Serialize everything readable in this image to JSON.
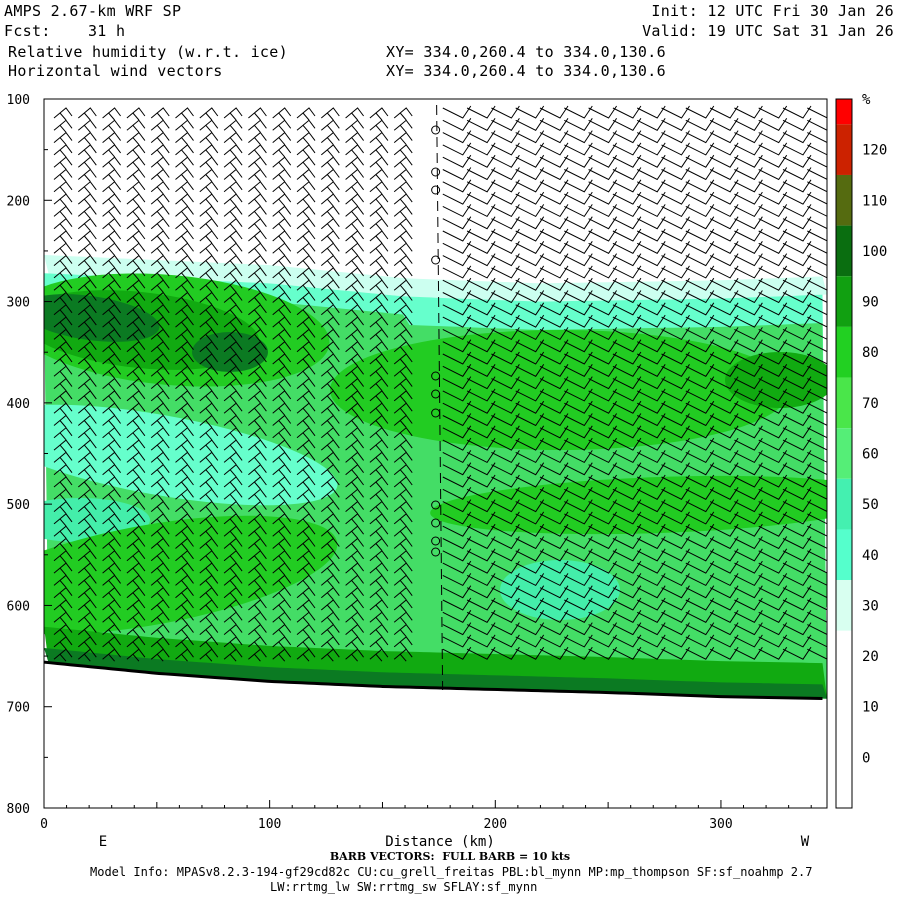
{
  "header": {
    "model": "AMPS 2.67-km WRF SP",
    "fcst": "Fcst:    31 h",
    "field1": "Relative humidity (w.r.t. ice)",
    "field2": "Horizontal wind vectors",
    "init": "Init: 12 UTC Fri 30 Jan 26",
    "valid": "Valid: 19 UTC Sat 31 Jan 26",
    "xy1": "XY= 334.0,260.4 to 334.0,130.6",
    "xy2": "XY= 334.0,260.4 to 334.0,130.6"
  },
  "footer": {
    "barb_note": "BARB VECTORS:  FULL BARB = 10 kts",
    "model_info": "Model Info: MPASv8.2.3-194-gf29cd82c CU:cu_grell_freitas PBL:bl_mynn MP:mp_thompson SF:sf_noahmp 2.7",
    "model_info2": "LW:rrtmg_lw SW:rrtmg_sw SFLAY:sf_mynn"
  },
  "colors": {
    "rh_0": "#ffffff",
    "rh_10": "#ffffff",
    "rh_20": "#ffffff",
    "rh_30": "#ccfff0",
    "rh_40": "#66ffcc",
    "rh_50": "#44eeaa",
    "rh_60": "#44dd66",
    "rh_70": "#22cc22",
    "rh_80": "#11aa11",
    "rh_90": "#0b7a22",
    "rh_100": "#4a6a0e",
    "rh_110": "#a32600",
    "rh_120": "#dd1100",
    "terrain": "#000000"
  },
  "chart_data": {
    "type": "heatmap",
    "xlabel": "Distance (km)",
    "ylabel": "",
    "xlim": [
      0,
      347
    ],
    "ylim": [
      800,
      100
    ],
    "x_ticks": [
      "0",
      "100",
      "200",
      "300"
    ],
    "x_tick_values": [
      0,
      100,
      200,
      300
    ],
    "y_ticks": [
      "100",
      "200",
      "300",
      "400",
      "500",
      "600",
      "700",
      "800"
    ],
    "y_tick_values": [
      100,
      200,
      300,
      400,
      500,
      600,
      700,
      800
    ],
    "left_label": "E",
    "right_label": "W",
    "colorbar": {
      "unit": "%",
      "labels": [
        "120",
        "110",
        "100",
        "90",
        "80",
        "70",
        "60",
        "50",
        "40",
        "30",
        "20",
        "10",
        "0"
      ],
      "label_values": [
        120,
        110,
        100,
        90,
        80,
        70,
        60,
        50,
        40,
        30,
        20,
        10,
        0
      ],
      "bins": [
        {
          "min": 125,
          "max": 130,
          "color": "#ff0000"
        },
        {
          "min": 115,
          "max": 125,
          "color": "#cc2200"
        },
        {
          "min": 105,
          "max": 115,
          "color": "#556b10"
        },
        {
          "min": 95,
          "max": 105,
          "color": "#0a6e10"
        },
        {
          "min": 85,
          "max": 95,
          "color": "#11a011"
        },
        {
          "min": 75,
          "max": 85,
          "color": "#22d022"
        },
        {
          "min": 65,
          "max": 75,
          "color": "#4ae64a"
        },
        {
          "min": 55,
          "max": 65,
          "color": "#55ee77"
        },
        {
          "min": 45,
          "max": 55,
          "color": "#44f0b0"
        },
        {
          "min": 35,
          "max": 45,
          "color": "#55ffcc"
        },
        {
          "min": 25,
          "max": 35,
          "color": "#d8fff0"
        },
        {
          "min": -10,
          "max": 25,
          "color": "#ffffff"
        }
      ]
    },
    "terrain_pressure": [
      {
        "x": 0,
        "p": 656
      },
      {
        "x": 50,
        "p": 667
      },
      {
        "x": 100,
        "p": 675
      },
      {
        "x": 150,
        "p": 680
      },
      {
        "x": 200,
        "p": 683
      },
      {
        "x": 250,
        "p": 686
      },
      {
        "x": 300,
        "p": 690
      },
      {
        "x": 347,
        "p": 692
      }
    ],
    "moist_top_pressure": [
      {
        "x": 0,
        "p": 262
      },
      {
        "x": 100,
        "p": 272
      },
      {
        "x": 160,
        "p": 285
      },
      {
        "x": 220,
        "p": 290
      },
      {
        "x": 300,
        "p": 287
      },
      {
        "x": 347,
        "p": 283
      }
    ]
  }
}
